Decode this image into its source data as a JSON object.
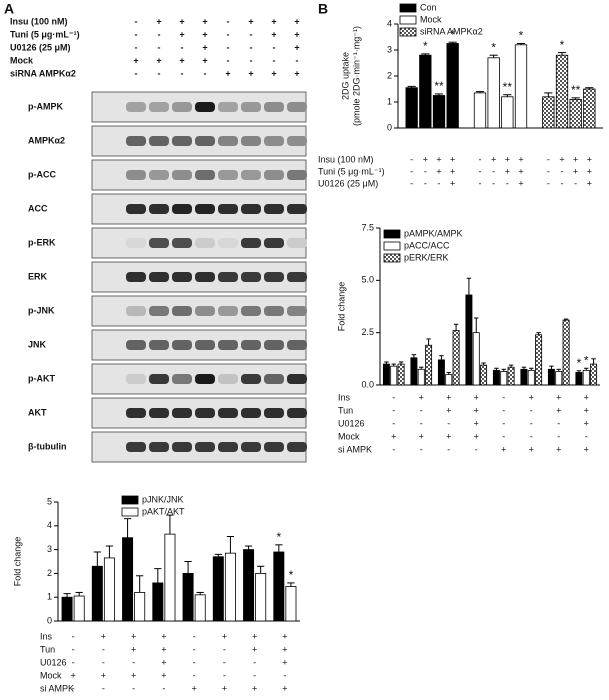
{
  "panel_labels": [
    "A",
    "B"
  ],
  "blot": {
    "conditions": [
      {
        "name": "Insu (100 nM)",
        "signs": [
          "-",
          "+",
          "+",
          "+",
          "-",
          "+",
          "+",
          "+"
        ]
      },
      {
        "name": "Tuni (5 μg·mL⁻¹)",
        "signs": [
          "-",
          "-",
          "+",
          "+",
          "-",
          "-",
          "+",
          "+"
        ]
      },
      {
        "name": "U0126 (25 μM)",
        "signs": [
          "-",
          "-",
          "-",
          "+",
          "-",
          "-",
          "-",
          "+"
        ]
      },
      {
        "name": "Mock",
        "signs": [
          "+",
          "+",
          "+",
          "+",
          "-",
          "-",
          "-",
          "-"
        ]
      },
      {
        "name": "siRNA AMPKα2",
        "signs": [
          "-",
          "-",
          "-",
          "-",
          "+",
          "+",
          "+",
          "+"
        ]
      }
    ],
    "rows": [
      "p-AMPK",
      "AMPKα2",
      "p-ACC",
      "ACC",
      "p-ERK",
      "ERK",
      "p-JNK",
      "JNK",
      "p-AKT",
      "AKT",
      "β-tubulin"
    ]
  },
  "chart_data": [
    {
      "type": "bar",
      "grouping": "series",
      "ylabel": [
        "2DG uptake",
        "(pmole 2DG·min⁻¹·mg⁻¹)"
      ],
      "ylim": [
        0,
        4
      ],
      "yticks": [
        0,
        1,
        2,
        3,
        4
      ],
      "series": [
        {
          "name": "Con",
          "color": "#000000",
          "values": [
            1.55,
            2.8,
            1.25,
            3.25
          ],
          "errors": [
            0.05,
            0.05,
            0.06,
            0.05
          ],
          "significance": [
            null,
            "*",
            "**",
            "*"
          ]
        },
        {
          "name": "Mock",
          "color": "#ffffff",
          "values": [
            1.35,
            2.7,
            1.2,
            3.2
          ],
          "errors": [
            0.05,
            0.1,
            0.08,
            0.05
          ],
          "significance": [
            null,
            "*",
            "**",
            "*"
          ]
        },
        {
          "name": "siRNA AMPKα2",
          "color": "#999999",
          "pattern": "checker",
          "values": [
            1.2,
            2.8,
            1.1,
            1.5
          ],
          "errors": [
            0.15,
            0.1,
            0.06,
            0.05
          ],
          "significance": [
            null,
            "*",
            "**",
            null
          ]
        }
      ],
      "conditions": [
        {
          "name": "Insu (100 nM)",
          "signs": [
            "-",
            "+",
            "+",
            "+",
            "-",
            "+",
            "+",
            "+",
            "-",
            "+",
            "+",
            "+"
          ]
        },
        {
          "name": "Tuni (5 μg·mL⁻¹)",
          "signs": [
            "-",
            "-",
            "+",
            "+",
            "-",
            "-",
            "+",
            "+",
            "-",
            "-",
            "+",
            "+"
          ]
        },
        {
          "name": "U0126 (25 μM)",
          "signs": [
            "-",
            "-",
            "-",
            "+",
            "-",
            "-",
            "-",
            "+",
            "-",
            "-",
            "-",
            "+"
          ]
        }
      ]
    },
    {
      "type": "bar",
      "grouping": "category",
      "ylabel": [
        "Fold change"
      ],
      "ylim": [
        0,
        7.5
      ],
      "yticks": [
        {
          "value": 0,
          "label": "0.0"
        },
        2.5,
        {
          "value": 5,
          "label": "5.0"
        },
        7.5
      ],
      "series": [
        {
          "name": "pAMPK/AMPK",
          "color": "#000000",
          "values": [
            1.0,
            1.3,
            1.2,
            4.3,
            0.7,
            0.75,
            0.75,
            0.6
          ],
          "errors": [
            0.1,
            0.15,
            0.2,
            0.8,
            0.1,
            0.1,
            0.15,
            0.08
          ],
          "significance": [
            null,
            null,
            null,
            null,
            null,
            null,
            null,
            "*"
          ]
        },
        {
          "name": "pACC/ACC",
          "color": "#ffffff",
          "values": [
            0.9,
            0.75,
            0.5,
            2.5,
            0.65,
            0.7,
            0.65,
            0.7
          ],
          "errors": [
            0.1,
            0.1,
            0.1,
            0.7,
            0.1,
            0.1,
            0.1,
            0.1
          ],
          "significance": [
            null,
            null,
            null,
            null,
            null,
            null,
            null,
            "*"
          ]
        },
        {
          "name": "pERK/ERK",
          "color": "#999999",
          "pattern": "checker",
          "values": [
            1.0,
            1.9,
            2.6,
            0.95,
            0.85,
            2.4,
            3.1,
            1.0
          ],
          "errors": [
            0.1,
            0.3,
            0.3,
            0.1,
            0.1,
            0.1,
            0.05,
            0.25
          ],
          "significance": [
            null,
            null,
            null,
            null,
            null,
            null,
            null,
            null
          ]
        }
      ],
      "conditions": [
        {
          "name": "Ins",
          "signs": [
            "-",
            "+",
            "+",
            "+",
            "-",
            "+",
            "+",
            "+"
          ]
        },
        {
          "name": "Tun",
          "signs": [
            "-",
            "-",
            "+",
            "+",
            "-",
            "-",
            "+",
            "+"
          ]
        },
        {
          "name": "U0126",
          "signs": [
            "-",
            "-",
            "-",
            "+",
            "-",
            "-",
            "-",
            "+"
          ]
        },
        {
          "name": "Mock",
          "signs": [
            "+",
            "+",
            "+",
            "+",
            "-",
            "-",
            "-",
            "-"
          ]
        },
        {
          "name": "si AMPK",
          "signs": [
            "-",
            "-",
            "-",
            "-",
            "+",
            "+",
            "+",
            "+"
          ]
        }
      ]
    },
    {
      "type": "bar",
      "grouping": "category",
      "ylabel": [
        "Fold change"
      ],
      "ylim": [
        0,
        5
      ],
      "yticks": [
        0,
        1,
        2,
        3,
        4,
        5
      ],
      "series": [
        {
          "name": "pJNK/JNK",
          "color": "#000000",
          "values": [
            1.0,
            2.3,
            3.5,
            1.6,
            2.0,
            2.7,
            3.0,
            2.9
          ],
          "errors": [
            0.15,
            0.6,
            0.8,
            0.6,
            0.5,
            0.1,
            0.15,
            0.3
          ],
          "significance": [
            null,
            null,
            null,
            null,
            null,
            null,
            null,
            "*"
          ]
        },
        {
          "name": "pAKT/AKT",
          "color": "#ffffff",
          "values": [
            1.05,
            2.65,
            1.2,
            3.65,
            1.1,
            2.85,
            2.0,
            1.45
          ],
          "errors": [
            0.15,
            0.5,
            0.7,
            0.8,
            0.1,
            0.7,
            0.3,
            0.15
          ],
          "significance": [
            null,
            null,
            null,
            null,
            null,
            null,
            null,
            "*"
          ]
        }
      ],
      "conditions": [
        {
          "name": "Ins",
          "signs": [
            "-",
            "+",
            "+",
            "+",
            "-",
            "+",
            "+",
            "+"
          ]
        },
        {
          "name": "Tun",
          "signs": [
            "-",
            "-",
            "+",
            "+",
            "-",
            "-",
            "+",
            "+"
          ]
        },
        {
          "name": "U0126",
          "signs": [
            "-",
            "-",
            "-",
            "+",
            "-",
            "-",
            "-",
            "+"
          ]
        },
        {
          "name": "Mock",
          "signs": [
            "+",
            "+",
            "+",
            "+",
            "-",
            "-",
            "-",
            "-"
          ]
        },
        {
          "name": "si AMPK",
          "signs": [
            "-",
            "-",
            "-",
            "-",
            "+",
            "+",
            "+",
            "+"
          ]
        }
      ]
    }
  ]
}
